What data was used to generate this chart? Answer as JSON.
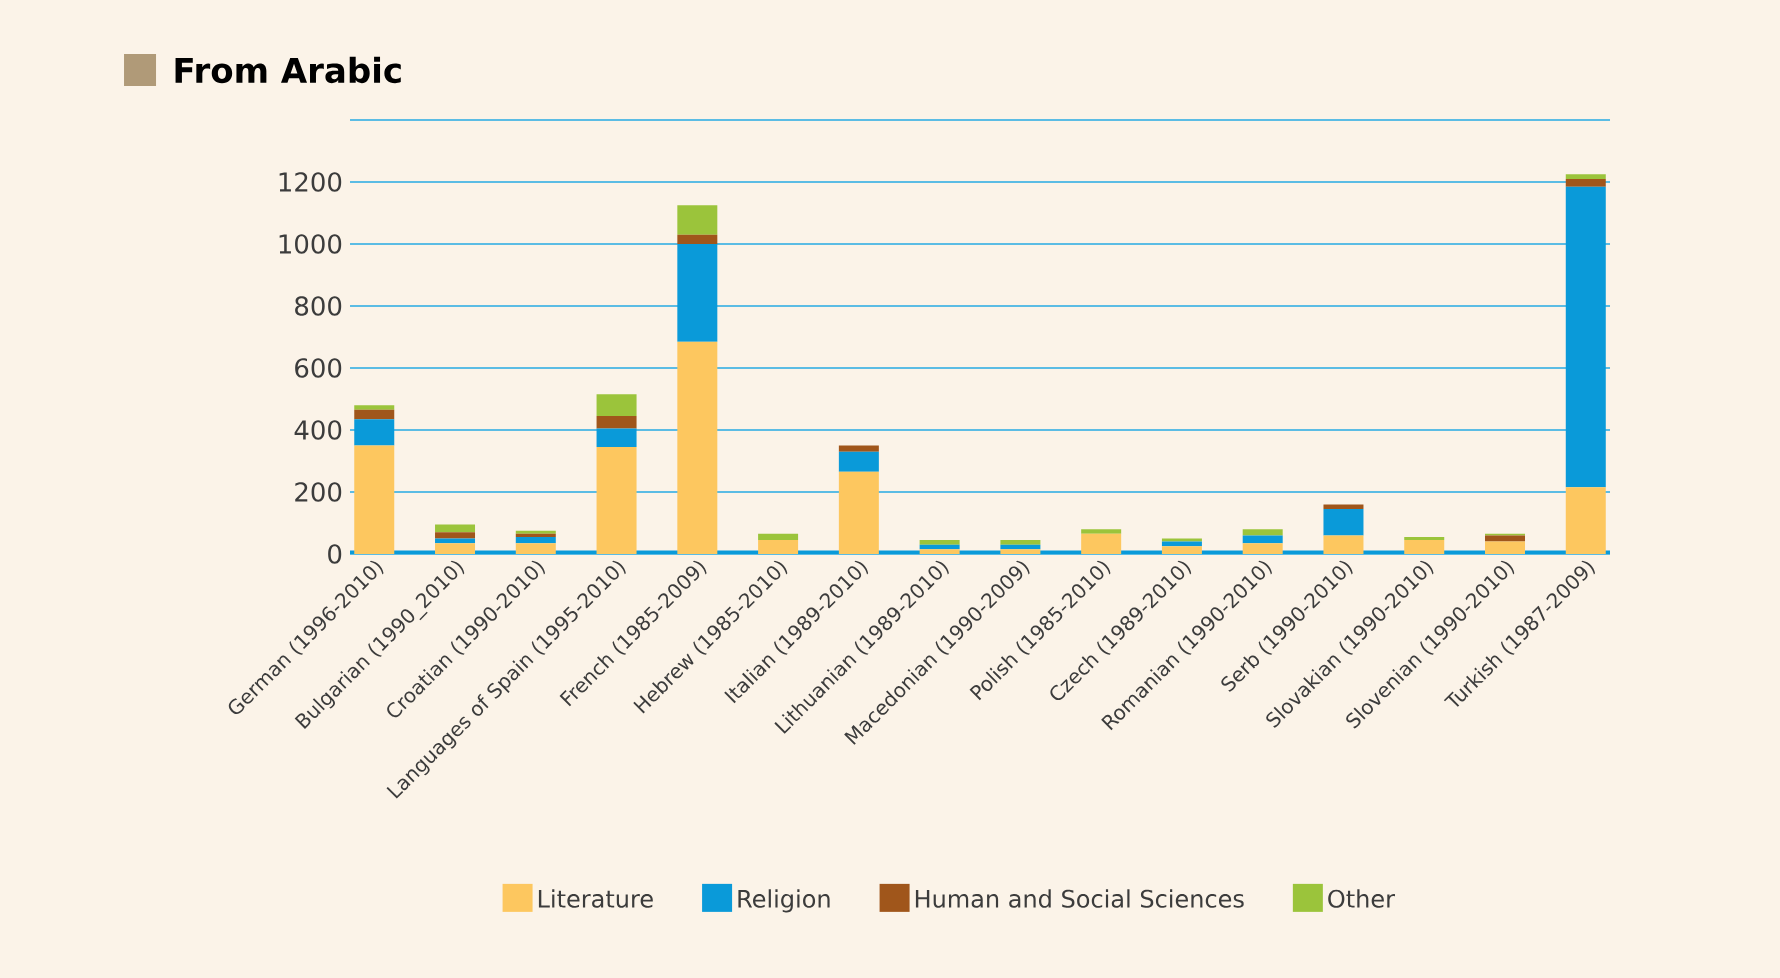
{
  "chart_data": {
    "type": "bar",
    "stacked": true,
    "title": "From Arabic",
    "categories": [
      "German (1996-2010)",
      "Bulgarian (1990_2010)",
      "Croatian (1990-2010)",
      "Languages of Spain (1995-2010)",
      "French (1985-2009)",
      "Hebrew (1985-2010)",
      "Italian (1989-2010)",
      "Lithuanian (1989-2010)",
      "Macedonian (1990-2009)",
      "Polish (1985-2010)",
      "Czech (1989-2010)",
      "Romanian (1990-2010)",
      "Serb (1990-2010)",
      "Slovakian (1990-2010)",
      "Slovenian (1990-2010)",
      "Turkish (1987-2009)"
    ],
    "series": [
      {
        "name": "Literature",
        "color": "#fdc75f",
        "values": [
          350,
          35,
          35,
          345,
          685,
          45,
          265,
          15,
          15,
          65,
          25,
          35,
          60,
          45,
          40,
          215
        ]
      },
      {
        "name": "Religion",
        "color": "#0a9ad9",
        "values": [
          85,
          15,
          20,
          60,
          315,
          0,
          65,
          15,
          15,
          0,
          15,
          25,
          85,
          0,
          0,
          970
        ]
      },
      {
        "name": "Human and Social Sciences",
        "color": "#a0561b",
        "values": [
          30,
          20,
          10,
          40,
          30,
          0,
          20,
          0,
          0,
          0,
          0,
          0,
          15,
          0,
          20,
          25
        ]
      },
      {
        "name": "Other",
        "color": "#9bc43b",
        "values": [
          15,
          25,
          10,
          70,
          95,
          20,
          0,
          15,
          15,
          15,
          10,
          20,
          0,
          10,
          5,
          15
        ]
      }
    ],
    "ylim": [
      0,
      1400
    ],
    "yticks": [
      0,
      200,
      400,
      600,
      800,
      1000,
      1200,
      {
        "value": 1400,
        "label": null
      }
    ],
    "grid": "y",
    "legend": "bottom"
  }
}
